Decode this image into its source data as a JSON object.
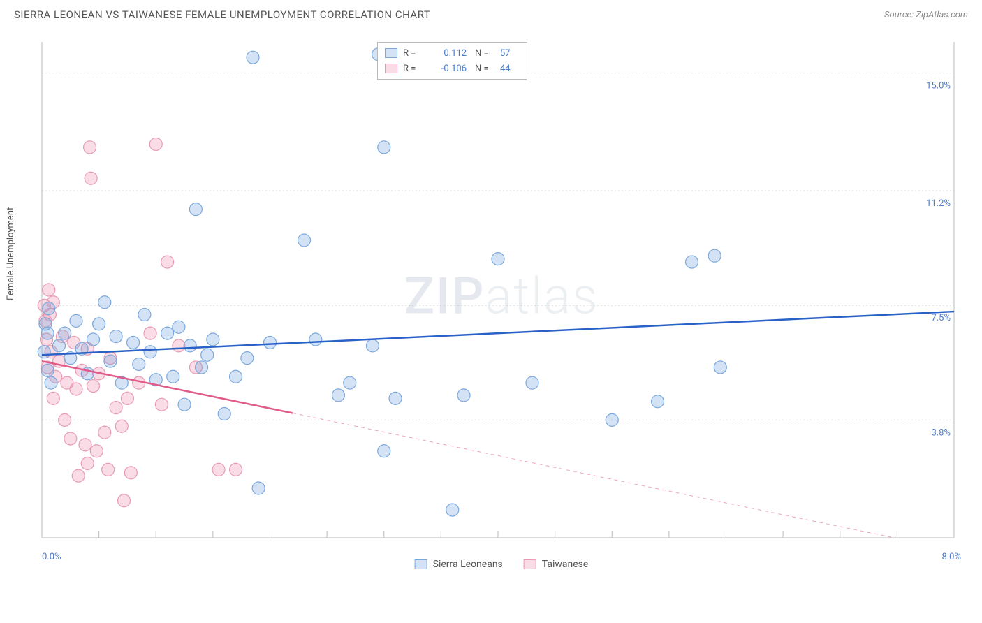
{
  "title": "SIERRA LEONEAN VS TAIWANESE FEMALE UNEMPLOYMENT CORRELATION CHART",
  "source": "Source: ZipAtlas.com",
  "ylabel": "Female Unemployment",
  "watermark_bold": "ZIP",
  "watermark_light": "atlas",
  "chart": {
    "type": "scatter",
    "xlim": [
      0.0,
      8.0
    ],
    "ylim": [
      0.0,
      16.0
    ],
    "xticks_minor": [
      0.5,
      1.0,
      1.5,
      2.0,
      2.5,
      3.0,
      3.5,
      4.0,
      4.5,
      5.0,
      5.5,
      6.0,
      6.5,
      7.0,
      7.5
    ],
    "yticks": [
      3.8,
      7.5,
      11.2,
      15.0
    ],
    "ytick_labels": [
      "3.8%",
      "7.5%",
      "11.2%",
      "15.0%"
    ],
    "x_min_label": "0.0%",
    "x_max_label": "8.0%",
    "background_color": "#ffffff",
    "grid_color": "#dcdcdc",
    "axis_color": "#bbbbbb",
    "marker_radius": 9,
    "marker_stroke_width": 1.2,
    "line_width": 2.5,
    "series": [
      {
        "name": "Sierra Leoneans",
        "fill": "rgba(110,160,220,0.30)",
        "stroke": "#7aa8dd",
        "line_color": "#2862c7",
        "R": "0.112",
        "N": "57",
        "regression": {
          "x1": 0.0,
          "y1": 5.9,
          "x2": 8.0,
          "y2": 7.3,
          "dashed_from_x": 8.0
        },
        "points": [
          [
            0.02,
            6.0
          ],
          [
            0.03,
            6.9
          ],
          [
            0.05,
            5.4
          ],
          [
            0.05,
            6.6
          ],
          [
            0.08,
            5.0
          ],
          [
            0.06,
            7.4
          ],
          [
            0.15,
            6.2
          ],
          [
            0.2,
            6.6
          ],
          [
            0.25,
            5.8
          ],
          [
            0.3,
            7.0
          ],
          [
            0.35,
            6.1
          ],
          [
            0.4,
            5.3
          ],
          [
            0.45,
            6.4
          ],
          [
            0.5,
            6.9
          ],
          [
            0.55,
            7.6
          ],
          [
            0.6,
            5.7
          ],
          [
            0.65,
            6.5
          ],
          [
            0.7,
            5.0
          ],
          [
            0.8,
            6.3
          ],
          [
            0.85,
            5.6
          ],
          [
            0.9,
            7.2
          ],
          [
            0.95,
            6.0
          ],
          [
            1.0,
            5.1
          ],
          [
            1.1,
            6.6
          ],
          [
            1.15,
            5.2
          ],
          [
            1.2,
            6.8
          ],
          [
            1.25,
            4.3
          ],
          [
            1.3,
            6.2
          ],
          [
            1.35,
            10.6
          ],
          [
            1.4,
            5.5
          ],
          [
            1.45,
            5.9
          ],
          [
            1.5,
            6.4
          ],
          [
            1.6,
            4.0
          ],
          [
            1.7,
            5.2
          ],
          [
            1.8,
            5.8
          ],
          [
            1.85,
            15.5
          ],
          [
            1.9,
            1.6
          ],
          [
            2.0,
            6.3
          ],
          [
            2.3,
            9.6
          ],
          [
            2.4,
            6.4
          ],
          [
            2.6,
            4.6
          ],
          [
            2.7,
            5.0
          ],
          [
            2.9,
            6.2
          ],
          [
            2.95,
            15.6
          ],
          [
            3.0,
            12.6
          ],
          [
            3.0,
            2.8
          ],
          [
            3.1,
            4.5
          ],
          [
            3.6,
            0.9
          ],
          [
            3.7,
            4.6
          ],
          [
            4.0,
            9.0
          ],
          [
            4.0,
            15.4
          ],
          [
            4.3,
            5.0
          ],
          [
            5.0,
            3.8
          ],
          [
            5.4,
            4.4
          ],
          [
            5.7,
            8.9
          ],
          [
            5.9,
            9.1
          ],
          [
            5.95,
            5.5
          ]
        ]
      },
      {
        "name": "Taiwanese",
        "fill": "rgba(235,140,170,0.30)",
        "stroke": "#e89ab3",
        "line_color": "#e05a8a",
        "R": "-0.106",
        "N": "44",
        "regression": {
          "x1": 0.0,
          "y1": 5.7,
          "x2": 8.0,
          "y2": -0.4,
          "dashed_from_x": 2.2
        },
        "points": [
          [
            0.02,
            7.5
          ],
          [
            0.03,
            7.0
          ],
          [
            0.04,
            6.4
          ],
          [
            0.05,
            5.5
          ],
          [
            0.06,
            8.0
          ],
          [
            0.07,
            7.2
          ],
          [
            0.08,
            6.0
          ],
          [
            0.1,
            7.6
          ],
          [
            0.1,
            4.5
          ],
          [
            0.12,
            5.2
          ],
          [
            0.15,
            5.7
          ],
          [
            0.18,
            6.5
          ],
          [
            0.2,
            3.8
          ],
          [
            0.22,
            5.0
          ],
          [
            0.25,
            3.2
          ],
          [
            0.28,
            6.3
          ],
          [
            0.3,
            4.8
          ],
          [
            0.32,
            2.0
          ],
          [
            0.35,
            5.4
          ],
          [
            0.38,
            3.0
          ],
          [
            0.4,
            6.1
          ],
          [
            0.4,
            2.4
          ],
          [
            0.42,
            12.6
          ],
          [
            0.43,
            11.6
          ],
          [
            0.45,
            4.9
          ],
          [
            0.48,
            2.8
          ],
          [
            0.5,
            5.3
          ],
          [
            0.55,
            3.4
          ],
          [
            0.58,
            2.2
          ],
          [
            0.6,
            5.8
          ],
          [
            0.65,
            4.2
          ],
          [
            0.7,
            3.6
          ],
          [
            0.72,
            1.2
          ],
          [
            0.75,
            4.5
          ],
          [
            0.78,
            2.1
          ],
          [
            0.85,
            5.0
          ],
          [
            0.95,
            6.6
          ],
          [
            1.0,
            12.7
          ],
          [
            1.05,
            4.3
          ],
          [
            1.1,
            8.9
          ],
          [
            1.2,
            6.2
          ],
          [
            1.35,
            5.5
          ],
          [
            1.55,
            2.2
          ],
          [
            1.7,
            2.2
          ]
        ]
      }
    ]
  },
  "legend_top": [
    {
      "series": 0
    },
    {
      "series": 1
    }
  ],
  "legend_bottom": [
    {
      "series": 0
    },
    {
      "series": 1
    }
  ]
}
